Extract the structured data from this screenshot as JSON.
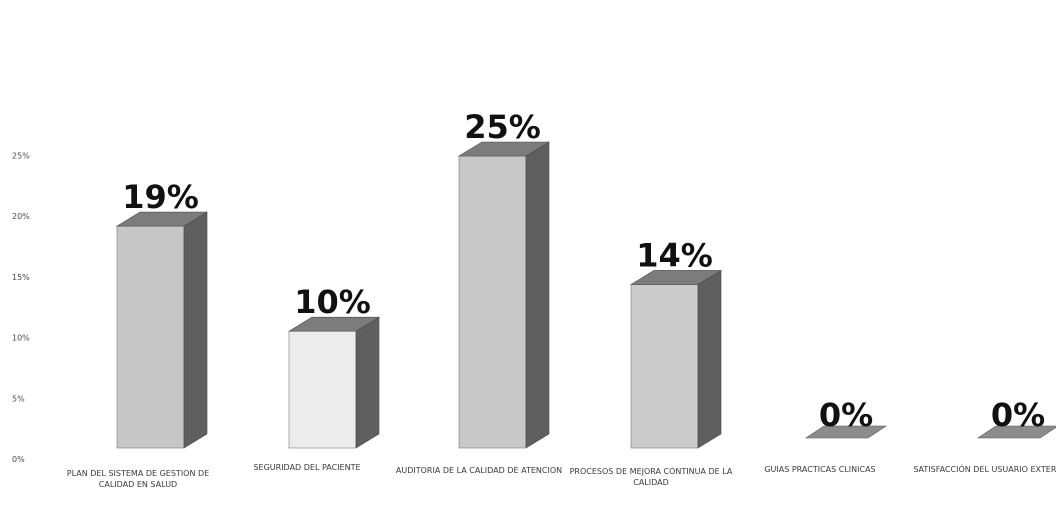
{
  "chart_data": {
    "type": "bar",
    "title": "",
    "xlabel": "",
    "ylabel": "",
    "ylim": [
      0,
      25
    ],
    "yticks": [
      "0%",
      "5%",
      "10%",
      "15%",
      "20%",
      "25%"
    ],
    "categories": [
      "PLAN DEL SISTEMA DE GESTION DE CALIDAD EN SALUD",
      "SEGURIDAD DEL PACIENTE",
      "AUDITORIA DE LA CALIDAD DE ATENCION",
      "PROCESOS DE MEJORA CONTINUA DE LA CALIDAD",
      "GUIAS PRACTICAS CLINICAS",
      "SATISFACCIÓN DEL USUARIO EXTERNO"
    ],
    "values": [
      19,
      10,
      25,
      14,
      0,
      0
    ],
    "data_labels": [
      "19%",
      "10%",
      "25%",
      "14%",
      "0%",
      "0%"
    ],
    "bar_colors": [
      "#c6c6c6",
      "#ececec",
      "#c8c8c8",
      "#cbcbcb",
      "#8c8c8c",
      "#8c8c8c"
    ],
    "legend": "none",
    "grid": false
  }
}
